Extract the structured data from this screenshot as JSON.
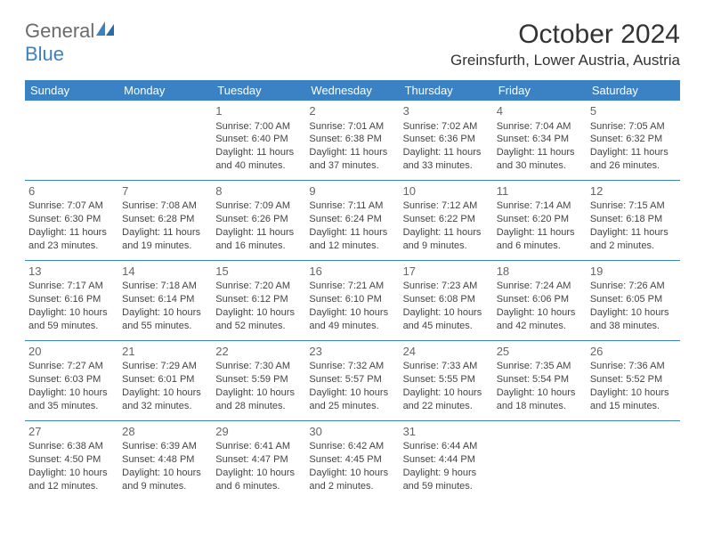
{
  "logo": {
    "part1": "General",
    "part2": "Blue"
  },
  "title": "October 2024",
  "location": "Greinsfurth, Lower Austria, Austria",
  "colors": {
    "header_bg": "#3b82c4",
    "header_text": "#ffffff",
    "border": "#3b82c4",
    "logo_gray": "#6b6b6b",
    "logo_blue": "#3b82c4"
  },
  "day_headers": [
    "Sunday",
    "Monday",
    "Tuesday",
    "Wednesday",
    "Thursday",
    "Friday",
    "Saturday"
  ],
  "weeks": [
    [
      null,
      null,
      {
        "n": "1",
        "sr": "Sunrise: 7:00 AM",
        "ss": "Sunset: 6:40 PM",
        "dl": "Daylight: 11 hours and 40 minutes."
      },
      {
        "n": "2",
        "sr": "Sunrise: 7:01 AM",
        "ss": "Sunset: 6:38 PM",
        "dl": "Daylight: 11 hours and 37 minutes."
      },
      {
        "n": "3",
        "sr": "Sunrise: 7:02 AM",
        "ss": "Sunset: 6:36 PM",
        "dl": "Daylight: 11 hours and 33 minutes."
      },
      {
        "n": "4",
        "sr": "Sunrise: 7:04 AM",
        "ss": "Sunset: 6:34 PM",
        "dl": "Daylight: 11 hours and 30 minutes."
      },
      {
        "n": "5",
        "sr": "Sunrise: 7:05 AM",
        "ss": "Sunset: 6:32 PM",
        "dl": "Daylight: 11 hours and 26 minutes."
      }
    ],
    [
      {
        "n": "6",
        "sr": "Sunrise: 7:07 AM",
        "ss": "Sunset: 6:30 PM",
        "dl": "Daylight: 11 hours and 23 minutes."
      },
      {
        "n": "7",
        "sr": "Sunrise: 7:08 AM",
        "ss": "Sunset: 6:28 PM",
        "dl": "Daylight: 11 hours and 19 minutes."
      },
      {
        "n": "8",
        "sr": "Sunrise: 7:09 AM",
        "ss": "Sunset: 6:26 PM",
        "dl": "Daylight: 11 hours and 16 minutes."
      },
      {
        "n": "9",
        "sr": "Sunrise: 7:11 AM",
        "ss": "Sunset: 6:24 PM",
        "dl": "Daylight: 11 hours and 12 minutes."
      },
      {
        "n": "10",
        "sr": "Sunrise: 7:12 AM",
        "ss": "Sunset: 6:22 PM",
        "dl": "Daylight: 11 hours and 9 minutes."
      },
      {
        "n": "11",
        "sr": "Sunrise: 7:14 AM",
        "ss": "Sunset: 6:20 PM",
        "dl": "Daylight: 11 hours and 6 minutes."
      },
      {
        "n": "12",
        "sr": "Sunrise: 7:15 AM",
        "ss": "Sunset: 6:18 PM",
        "dl": "Daylight: 11 hours and 2 minutes."
      }
    ],
    [
      {
        "n": "13",
        "sr": "Sunrise: 7:17 AM",
        "ss": "Sunset: 6:16 PM",
        "dl": "Daylight: 10 hours and 59 minutes."
      },
      {
        "n": "14",
        "sr": "Sunrise: 7:18 AM",
        "ss": "Sunset: 6:14 PM",
        "dl": "Daylight: 10 hours and 55 minutes."
      },
      {
        "n": "15",
        "sr": "Sunrise: 7:20 AM",
        "ss": "Sunset: 6:12 PM",
        "dl": "Daylight: 10 hours and 52 minutes."
      },
      {
        "n": "16",
        "sr": "Sunrise: 7:21 AM",
        "ss": "Sunset: 6:10 PM",
        "dl": "Daylight: 10 hours and 49 minutes."
      },
      {
        "n": "17",
        "sr": "Sunrise: 7:23 AM",
        "ss": "Sunset: 6:08 PM",
        "dl": "Daylight: 10 hours and 45 minutes."
      },
      {
        "n": "18",
        "sr": "Sunrise: 7:24 AM",
        "ss": "Sunset: 6:06 PM",
        "dl": "Daylight: 10 hours and 42 minutes."
      },
      {
        "n": "19",
        "sr": "Sunrise: 7:26 AM",
        "ss": "Sunset: 6:05 PM",
        "dl": "Daylight: 10 hours and 38 minutes."
      }
    ],
    [
      {
        "n": "20",
        "sr": "Sunrise: 7:27 AM",
        "ss": "Sunset: 6:03 PM",
        "dl": "Daylight: 10 hours and 35 minutes."
      },
      {
        "n": "21",
        "sr": "Sunrise: 7:29 AM",
        "ss": "Sunset: 6:01 PM",
        "dl": "Daylight: 10 hours and 32 minutes."
      },
      {
        "n": "22",
        "sr": "Sunrise: 7:30 AM",
        "ss": "Sunset: 5:59 PM",
        "dl": "Daylight: 10 hours and 28 minutes."
      },
      {
        "n": "23",
        "sr": "Sunrise: 7:32 AM",
        "ss": "Sunset: 5:57 PM",
        "dl": "Daylight: 10 hours and 25 minutes."
      },
      {
        "n": "24",
        "sr": "Sunrise: 7:33 AM",
        "ss": "Sunset: 5:55 PM",
        "dl": "Daylight: 10 hours and 22 minutes."
      },
      {
        "n": "25",
        "sr": "Sunrise: 7:35 AM",
        "ss": "Sunset: 5:54 PM",
        "dl": "Daylight: 10 hours and 18 minutes."
      },
      {
        "n": "26",
        "sr": "Sunrise: 7:36 AM",
        "ss": "Sunset: 5:52 PM",
        "dl": "Daylight: 10 hours and 15 minutes."
      }
    ],
    [
      {
        "n": "27",
        "sr": "Sunrise: 6:38 AM",
        "ss": "Sunset: 4:50 PM",
        "dl": "Daylight: 10 hours and 12 minutes."
      },
      {
        "n": "28",
        "sr": "Sunrise: 6:39 AM",
        "ss": "Sunset: 4:48 PM",
        "dl": "Daylight: 10 hours and 9 minutes."
      },
      {
        "n": "29",
        "sr": "Sunrise: 6:41 AM",
        "ss": "Sunset: 4:47 PM",
        "dl": "Daylight: 10 hours and 6 minutes."
      },
      {
        "n": "30",
        "sr": "Sunrise: 6:42 AM",
        "ss": "Sunset: 4:45 PM",
        "dl": "Daylight: 10 hours and 2 minutes."
      },
      {
        "n": "31",
        "sr": "Sunrise: 6:44 AM",
        "ss": "Sunset: 4:44 PM",
        "dl": "Daylight: 9 hours and 59 minutes."
      },
      null,
      null
    ]
  ]
}
